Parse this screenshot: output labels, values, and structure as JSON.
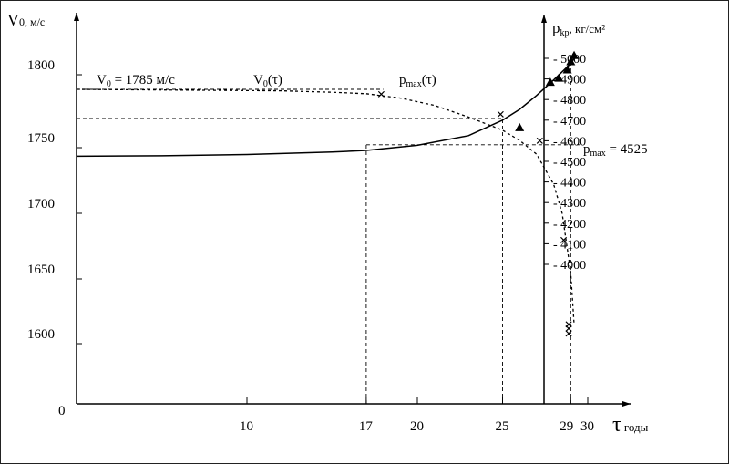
{
  "chart_data": {
    "type": "line",
    "left_axis": {
      "label": "V",
      "label_sub": "0, м/с",
      "ticks": [
        {
          "v": 1800,
          "label": "1800"
        },
        {
          "v": 1750,
          "label": "1750"
        },
        {
          "v": 1700,
          "label": "1700"
        },
        {
          "v": 1650,
          "label": "1650"
        },
        {
          "v": 1600,
          "label": "1600"
        },
        {
          "v": 0,
          "label": "0"
        }
      ]
    },
    "right_axis": {
      "label": "p",
      "label_sub": "kp",
      "label_unit": ", кг/см²",
      "ticks": [
        5000,
        4900,
        4800,
        4700,
        4600,
        4500,
        4400,
        4300,
        4200,
        4100,
        4000
      ]
    },
    "x_axis": {
      "label": "τ",
      "unit": " годы",
      "ticks": [
        {
          "v": 10,
          "label": "10"
        },
        {
          "v": 17,
          "label": "17"
        },
        {
          "v": 20,
          "label": "20"
        },
        {
          "v": 25,
          "label": "25"
        },
        {
          "v": 29,
          "label": "29"
        },
        {
          "v": 30,
          "label": "30"
        }
      ]
    },
    "series": [
      {
        "name": "V₀(τ)",
        "axis": "left",
        "style": "dashed",
        "points": [
          [
            0,
            1790
          ],
          [
            6,
            1789.5
          ],
          [
            12,
            1789
          ],
          [
            15,
            1788
          ],
          [
            17,
            1787
          ],
          [
            19,
            1784
          ],
          [
            21,
            1779
          ],
          [
            23,
            1771
          ],
          [
            25,
            1762
          ],
          [
            26,
            1755
          ],
          [
            27,
            1745
          ],
          [
            28,
            1722
          ],
          [
            28.5,
            1700
          ],
          [
            29,
            1655
          ],
          [
            29.2,
            1615
          ]
        ]
      },
      {
        "name": "p_max(τ)",
        "axis": "right",
        "style": "solid",
        "points": [
          [
            0,
            4525
          ],
          [
            5,
            4527
          ],
          [
            10,
            4533
          ],
          [
            15,
            4545
          ],
          [
            17,
            4553
          ],
          [
            20,
            4578
          ],
          [
            23,
            4625
          ],
          [
            25,
            4700
          ],
          [
            26,
            4752
          ],
          [
            27,
            4820
          ],
          [
            28,
            4895
          ],
          [
            29,
            4975
          ],
          [
            29.3,
            5010
          ]
        ]
      }
    ],
    "markers": {
      "cross": [
        [
          18,
          1787
        ],
        [
          25,
          1773
        ],
        [
          27.3,
          1755
        ],
        [
          28.7,
          1680
        ],
        [
          29,
          1615
        ],
        [
          29,
          1612
        ],
        [
          29,
          1608
        ]
      ],
      "triangle": [
        [
          26,
          4660
        ],
        [
          27.8,
          4880
        ],
        [
          28.3,
          4900
        ],
        [
          28.8,
          4940
        ],
        [
          29,
          4980
        ],
        [
          29.2,
          5010
        ]
      ]
    },
    "guides": {
      "v_lines_x": [
        17,
        25,
        29
      ],
      "h_lines": [
        {
          "axis": "left",
          "v": 1790
        },
        {
          "axis": "left",
          "v": 1770
        },
        {
          "axis": "left",
          "v": 1752
        }
      ]
    },
    "annotations": {
      "v0_text_a": "V",
      "v0_text_sub": "0",
      "v0_text_b": " = 1785 м/с",
      "v0_curve_a": "V",
      "v0_curve_sub": "0",
      "v0_curve_b": "(τ)",
      "pmax_curve_a": "p",
      "pmax_curve_sub": "max",
      "pmax_curve_b": "(τ)",
      "pmax_val_a": "p",
      "pmax_val_sub": "max",
      "pmax_val_b": " = 4525"
    }
  }
}
